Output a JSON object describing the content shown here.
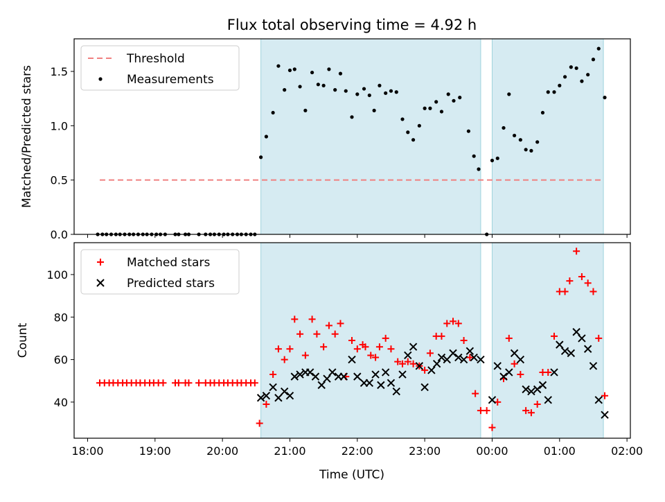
{
  "chart_data": [
    {
      "type": "scatter",
      "title": "Flux total observing time = 4.92 h",
      "ylabel": "Matched/Predicted stars",
      "xlabel": "",
      "x_unit": "hours since 18:00 UTC (x ticks printed as clock times)",
      "ylim": [
        0,
        1.8
      ],
      "xlim": [
        -0.2,
        8.05
      ],
      "yticks": [
        "0.0",
        "0.5",
        "1.0",
        "1.5"
      ],
      "threshold": 0.5,
      "shaded_intervals": [
        [
          2.57,
          5.83
        ],
        [
          6.0,
          7.65
        ]
      ],
      "legend": {
        "position": "upper-left",
        "entries": [
          "Threshold",
          "Measurements"
        ]
      },
      "series": [
        {
          "name": "Threshold",
          "style": "dashed-line",
          "color": "#f08080",
          "points": [
            [
              0.18,
              0.5
            ],
            [
              7.65,
              0.5
            ]
          ]
        },
        {
          "name": "Measurements",
          "style": "dot",
          "color": "#000000",
          "points": [
            [
              0.15,
              0
            ],
            [
              0.22,
              0
            ],
            [
              0.28,
              0
            ],
            [
              0.35,
              0
            ],
            [
              0.42,
              0
            ],
            [
              0.48,
              0
            ],
            [
              0.55,
              0
            ],
            [
              0.62,
              0
            ],
            [
              0.68,
              0
            ],
            [
              0.75,
              0
            ],
            [
              0.82,
              0
            ],
            [
              0.88,
              0
            ],
            [
              0.95,
              0
            ],
            [
              1.02,
              0
            ],
            [
              1.08,
              0
            ],
            [
              1.15,
              0
            ],
            [
              1.3,
              0
            ],
            [
              1.35,
              0
            ],
            [
              1.45,
              0
            ],
            [
              1.5,
              0
            ],
            [
              1.65,
              0
            ],
            [
              1.75,
              0
            ],
            [
              1.82,
              0
            ],
            [
              1.88,
              0
            ],
            [
              1.95,
              0
            ],
            [
              2.02,
              0
            ],
            [
              2.08,
              0
            ],
            [
              2.15,
              0
            ],
            [
              2.22,
              0
            ],
            [
              2.28,
              0
            ],
            [
              2.35,
              0
            ],
            [
              2.42,
              0
            ],
            [
              2.48,
              0
            ],
            [
              2.57,
              0.71
            ],
            [
              2.65,
              0.9
            ],
            [
              2.75,
              1.12
            ],
            [
              2.83,
              1.55
            ],
            [
              2.92,
              1.33
            ],
            [
              3.0,
              1.51
            ],
            [
              3.07,
              1.52
            ],
            [
              3.15,
              1.36
            ],
            [
              3.23,
              1.14
            ],
            [
              3.33,
              1.49
            ],
            [
              3.42,
              1.38
            ],
            [
              3.5,
              1.37
            ],
            [
              3.58,
              1.52
            ],
            [
              3.67,
              1.33
            ],
            [
              3.75,
              1.48
            ],
            [
              3.83,
              1.32
            ],
            [
              3.92,
              1.08
            ],
            [
              4.0,
              1.29
            ],
            [
              4.1,
              1.34
            ],
            [
              4.18,
              1.28
            ],
            [
              4.25,
              1.14
            ],
            [
              4.33,
              1.37
            ],
            [
              4.42,
              1.3
            ],
            [
              4.5,
              1.32
            ],
            [
              4.58,
              1.31
            ],
            [
              4.67,
              1.06
            ],
            [
              4.75,
              0.94
            ],
            [
              4.83,
              0.87
            ],
            [
              4.92,
              1.0
            ],
            [
              5.0,
              1.16
            ],
            [
              5.08,
              1.16
            ],
            [
              5.17,
              1.22
            ],
            [
              5.25,
              1.13
            ],
            [
              5.35,
              1.29
            ],
            [
              5.43,
              1.23
            ],
            [
              5.52,
              1.26
            ],
            [
              5.65,
              0.95
            ],
            [
              5.73,
              0.72
            ],
            [
              5.8,
              0.6
            ],
            [
              5.92,
              0
            ],
            [
              6.0,
              0.68
            ],
            [
              6.08,
              0.7
            ],
            [
              6.17,
              0.98
            ],
            [
              6.25,
              1.29
            ],
            [
              6.33,
              0.91
            ],
            [
              6.42,
              0.87
            ],
            [
              6.5,
              0.78
            ],
            [
              6.58,
              0.77
            ],
            [
              6.67,
              0.85
            ],
            [
              6.75,
              1.12
            ],
            [
              6.83,
              1.31
            ],
            [
              6.92,
              1.31
            ],
            [
              7.0,
              1.37
            ],
            [
              7.08,
              1.45
            ],
            [
              7.17,
              1.54
            ],
            [
              7.25,
              1.53
            ],
            [
              7.33,
              1.41
            ],
            [
              7.42,
              1.47
            ],
            [
              7.5,
              1.61
            ],
            [
              7.58,
              1.71
            ],
            [
              7.67,
              1.26
            ]
          ]
        }
      ]
    },
    {
      "type": "scatter",
      "title": "",
      "xlabel": "Time (UTC)",
      "ylabel": "Count",
      "x_unit": "hours since 18:00 UTC (x ticks printed as clock times)",
      "ylim": [
        23,
        115
      ],
      "xlim": [
        -0.2,
        8.05
      ],
      "yticks": [
        "40",
        "60",
        "80",
        "100"
      ],
      "xticks": [
        "18:00",
        "19:00",
        "20:00",
        "21:00",
        "22:00",
        "23:00",
        "00:00",
        "01:00",
        "02:00"
      ],
      "shaded_intervals": [
        [
          2.57,
          5.83
        ],
        [
          6.0,
          7.65
        ]
      ],
      "legend": {
        "position": "upper-left",
        "entries": [
          "Matched stars",
          "Predicted stars"
        ]
      },
      "series": [
        {
          "name": "Matched stars",
          "style": "plus",
          "color": "#ff0000",
          "points": [
            [
              0.18,
              49
            ],
            [
              0.25,
              49
            ],
            [
              0.32,
              49
            ],
            [
              0.38,
              49
            ],
            [
              0.45,
              49
            ],
            [
              0.52,
              49
            ],
            [
              0.58,
              49
            ],
            [
              0.65,
              49
            ],
            [
              0.72,
              49
            ],
            [
              0.78,
              49
            ],
            [
              0.85,
              49
            ],
            [
              0.92,
              49
            ],
            [
              0.98,
              49
            ],
            [
              1.05,
              49
            ],
            [
              1.12,
              49
            ],
            [
              1.3,
              49
            ],
            [
              1.35,
              49
            ],
            [
              1.45,
              49
            ],
            [
              1.5,
              49
            ],
            [
              1.65,
              49
            ],
            [
              1.75,
              49
            ],
            [
              1.82,
              49
            ],
            [
              1.88,
              49
            ],
            [
              1.95,
              49
            ],
            [
              2.02,
              49
            ],
            [
              2.08,
              49
            ],
            [
              2.15,
              49
            ],
            [
              2.22,
              49
            ],
            [
              2.28,
              49
            ],
            [
              2.35,
              49
            ],
            [
              2.42,
              49
            ],
            [
              2.48,
              49
            ],
            [
              2.55,
              30
            ],
            [
              2.65,
              39
            ],
            [
              2.75,
              53
            ],
            [
              2.83,
              65
            ],
            [
              2.92,
              60
            ],
            [
              3.0,
              65
            ],
            [
              3.07,
              79
            ],
            [
              3.15,
              72
            ],
            [
              3.23,
              62
            ],
            [
              3.33,
              79
            ],
            [
              3.4,
              72
            ],
            [
              3.5,
              66
            ],
            [
              3.58,
              76
            ],
            [
              3.67,
              72
            ],
            [
              3.75,
              77
            ],
            [
              3.83,
              52
            ],
            [
              3.92,
              69
            ],
            [
              4.0,
              65
            ],
            [
              4.08,
              67
            ],
            [
              4.12,
              66
            ],
            [
              4.2,
              62
            ],
            [
              4.27,
              61
            ],
            [
              4.33,
              66
            ],
            [
              4.42,
              70
            ],
            [
              4.5,
              65
            ],
            [
              4.6,
              59
            ],
            [
              4.67,
              58
            ],
            [
              4.75,
              59
            ],
            [
              4.83,
              58
            ],
            [
              4.92,
              57
            ],
            [
              5.0,
              55
            ],
            [
              5.08,
              63
            ],
            [
              5.17,
              71
            ],
            [
              5.25,
              71
            ],
            [
              5.33,
              77
            ],
            [
              5.42,
              78
            ],
            [
              5.5,
              77
            ],
            [
              5.58,
              69
            ],
            [
              5.67,
              61
            ],
            [
              5.75,
              44
            ],
            [
              5.83,
              36
            ],
            [
              5.92,
              36
            ],
            [
              6.0,
              28
            ],
            [
              6.08,
              40
            ],
            [
              6.17,
              51
            ],
            [
              6.25,
              70
            ],
            [
              6.33,
              58
            ],
            [
              6.42,
              53
            ],
            [
              6.5,
              36
            ],
            [
              6.58,
              35
            ],
            [
              6.67,
              39
            ],
            [
              6.75,
              54
            ],
            [
              6.83,
              54
            ],
            [
              6.92,
              71
            ],
            [
              7.0,
              92
            ],
            [
              7.08,
              92
            ],
            [
              7.15,
              97
            ],
            [
              7.25,
              111
            ],
            [
              7.33,
              99
            ],
            [
              7.42,
              96
            ],
            [
              7.5,
              92
            ],
            [
              7.58,
              70
            ],
            [
              7.67,
              43
            ]
          ]
        },
        {
          "name": "Predicted stars",
          "style": "cross",
          "color": "#000000",
          "points": [
            [
              2.57,
              42
            ],
            [
              2.65,
              43
            ],
            [
              2.75,
              47
            ],
            [
              2.83,
              42
            ],
            [
              2.92,
              45
            ],
            [
              3.0,
              43
            ],
            [
              3.07,
              52
            ],
            [
              3.15,
              53
            ],
            [
              3.23,
              54
            ],
            [
              3.3,
              54
            ],
            [
              3.38,
              52
            ],
            [
              3.47,
              48
            ],
            [
              3.55,
              51
            ],
            [
              3.63,
              54
            ],
            [
              3.72,
              52
            ],
            [
              3.8,
              52
            ],
            [
              3.92,
              60
            ],
            [
              4.0,
              52
            ],
            [
              4.1,
              49
            ],
            [
              4.18,
              49
            ],
            [
              4.27,
              53
            ],
            [
              4.35,
              48
            ],
            [
              4.42,
              54
            ],
            [
              4.5,
              49
            ],
            [
              4.58,
              45
            ],
            [
              4.67,
              53
            ],
            [
              4.75,
              62
            ],
            [
              4.83,
              66
            ],
            [
              4.92,
              57
            ],
            [
              5.0,
              47
            ],
            [
              5.1,
              55
            ],
            [
              5.18,
              58
            ],
            [
              5.25,
              61
            ],
            [
              5.33,
              60
            ],
            [
              5.42,
              63
            ],
            [
              5.5,
              61
            ],
            [
              5.58,
              60
            ],
            [
              5.67,
              64
            ],
            [
              5.73,
              61
            ],
            [
              5.83,
              60
            ],
            [
              6.0,
              41
            ],
            [
              6.08,
              57
            ],
            [
              6.17,
              52
            ],
            [
              6.25,
              54
            ],
            [
              6.33,
              63
            ],
            [
              6.42,
              60
            ],
            [
              6.5,
              46
            ],
            [
              6.58,
              45
            ],
            [
              6.67,
              46
            ],
            [
              6.75,
              48
            ],
            [
              6.83,
              41
            ],
            [
              6.92,
              54
            ],
            [
              7.0,
              67
            ],
            [
              7.08,
              64
            ],
            [
              7.17,
              63
            ],
            [
              7.25,
              73
            ],
            [
              7.33,
              70
            ],
            [
              7.42,
              65
            ],
            [
              7.5,
              57
            ],
            [
              7.58,
              41
            ],
            [
              7.67,
              34
            ]
          ]
        }
      ]
    }
  ]
}
